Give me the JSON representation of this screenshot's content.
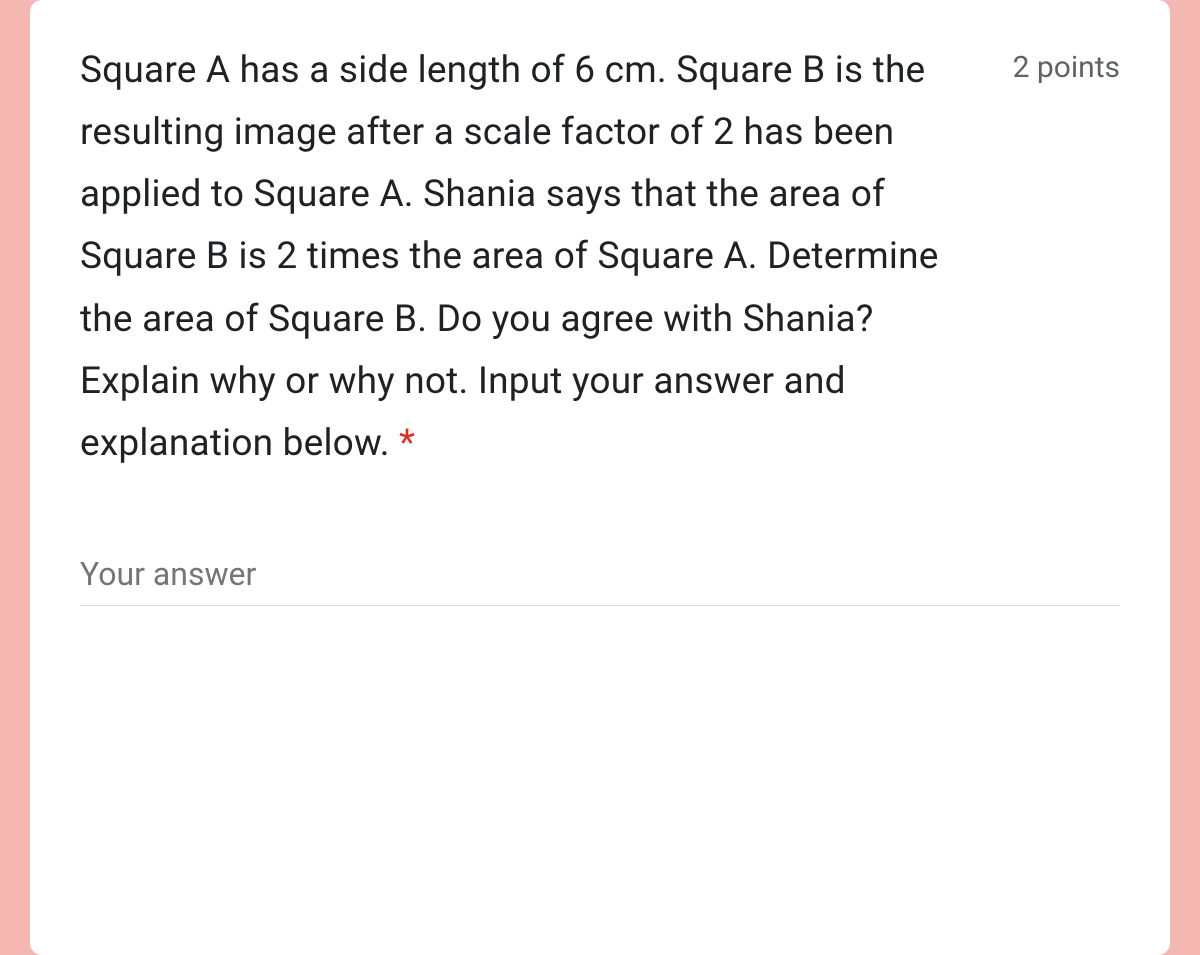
{
  "card": {
    "question_text": "Square A has a side length of 6 cm. Square B is the resulting image after a scale factor of 2 has been applied to Square A. Shania says that the area of Square B is 2 times the area of Square A. Determine the area of Square B. Do you agree with Shania? Explain why or why not. Input your answer and explanation below.",
    "required_marker": " *",
    "points_label": "2 points",
    "answer_placeholder": "Your answer",
    "answer_value": ""
  },
  "colors": {
    "page_bg": "#f5b7b1",
    "card_bg": "#ffffff",
    "text_primary": "#202124",
    "text_secondary": "#5f6368",
    "required": "#d93025",
    "input_border": "#dadce0",
    "placeholder": "#757575"
  }
}
